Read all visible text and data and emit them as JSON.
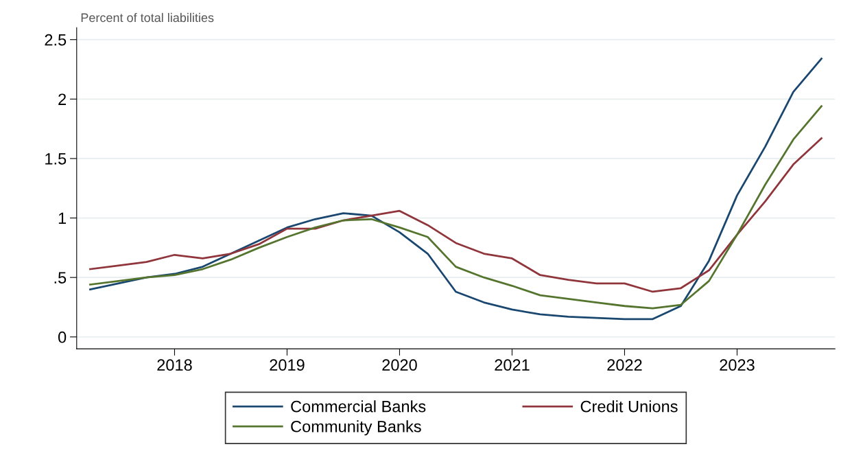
{
  "chart_data": {
    "type": "line",
    "ylabel": "Percent of total liabilities",
    "x": [
      2017.25,
      2017.5,
      2017.75,
      2018,
      2018.25,
      2018.5,
      2018.75,
      2019,
      2019.25,
      2019.5,
      2019.75,
      2020,
      2020.25,
      2020.5,
      2020.75,
      2021,
      2021.25,
      2021.5,
      2021.75,
      2022,
      2022.25,
      2022.5,
      2022.75,
      2023,
      2023.25,
      2023.5,
      2023.75
    ],
    "series": [
      {
        "name": "Commercial Banks",
        "color": "#1a476f",
        "values": [
          0.4,
          0.45,
          0.5,
          0.53,
          0.59,
          0.7,
          0.81,
          0.92,
          0.99,
          1.04,
          1.02,
          0.88,
          0.7,
          0.38,
          0.29,
          0.23,
          0.19,
          0.17,
          0.16,
          0.15,
          0.15,
          0.26,
          0.64,
          1.19,
          1.6,
          2.06,
          2.34
        ]
      },
      {
        "name": "Credit Unions",
        "color": "#90353b",
        "values": [
          0.57,
          0.6,
          0.63,
          0.69,
          0.66,
          0.7,
          0.78,
          0.91,
          0.91,
          0.98,
          1.02,
          1.06,
          0.94,
          0.79,
          0.7,
          0.66,
          0.52,
          0.48,
          0.45,
          0.45,
          0.38,
          0.41,
          0.56,
          0.86,
          1.14,
          1.45,
          1.67
        ]
      },
      {
        "name": "Community Banks",
        "color": "#55752f",
        "values": [
          0.44,
          0.47,
          0.5,
          0.52,
          0.57,
          0.65,
          0.75,
          0.84,
          0.92,
          0.98,
          0.99,
          0.92,
          0.84,
          0.59,
          0.5,
          0.43,
          0.35,
          0.32,
          0.29,
          0.26,
          0.24,
          0.27,
          0.47,
          0.86,
          1.28,
          1.66,
          1.94
        ]
      }
    ],
    "xlim": [
      2017.13,
      2023.87
    ],
    "xticks": [
      2018,
      2019,
      2020,
      2021,
      2022,
      2023
    ],
    "ylim": [
      -0.1,
      2.6
    ],
    "yticks": [
      0,
      {
        "value": 0.5,
        "label": ".5"
      },
      1,
      1.5,
      2,
      2.5
    ],
    "grid": "y",
    "legend": "bottom",
    "line_style": "solid",
    "marker": "none"
  }
}
